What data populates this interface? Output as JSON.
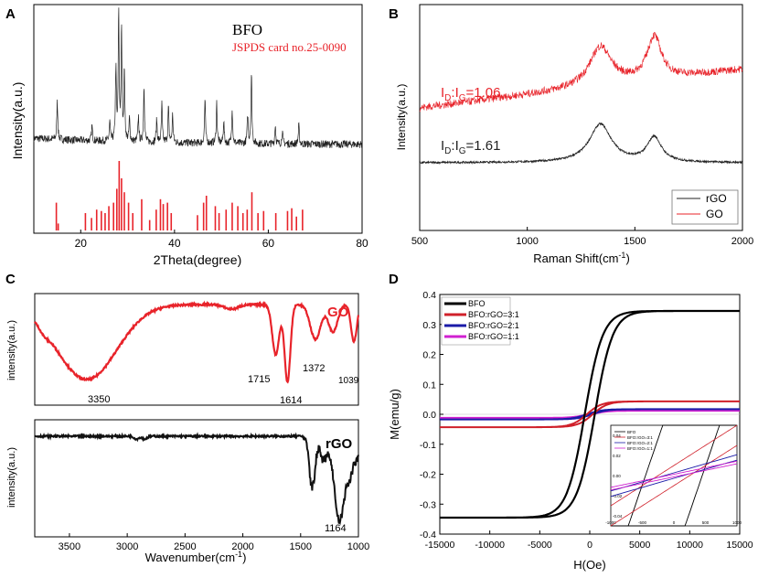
{
  "chart_data": [
    {
      "panel": "A",
      "type": "line",
      "xlabel": "2Theta(degree)",
      "ylabel": "Intensity(a.u.)",
      "xlim": [
        10,
        80
      ],
      "xticks": [
        "20",
        "40",
        "60",
        "80"
      ],
      "legend": [
        "BFO",
        "JSPDS card no.25-0090"
      ],
      "peaks": [
        {
          "x": 15.0,
          "h": 0.3
        },
        {
          "x": 22.4,
          "h": 0.12
        },
        {
          "x": 26.2,
          "h": 0.15
        },
        {
          "x": 27.5,
          "h": 0.55
        },
        {
          "x": 28.1,
          "h": 1.0
        },
        {
          "x": 28.7,
          "h": 0.85
        },
        {
          "x": 29.3,
          "h": 0.55
        },
        {
          "x": 30.4,
          "h": 0.18
        },
        {
          "x": 32.3,
          "h": 0.2
        },
        {
          "x": 33.5,
          "h": 0.45
        },
        {
          "x": 36.2,
          "h": 0.18
        },
        {
          "x": 37.3,
          "h": 0.3
        },
        {
          "x": 38.7,
          "h": 0.28
        },
        {
          "x": 39.6,
          "h": 0.22
        },
        {
          "x": 46.5,
          "h": 0.35
        },
        {
          "x": 49.0,
          "h": 0.32
        },
        {
          "x": 50.5,
          "h": 0.18
        },
        {
          "x": 52.3,
          "h": 0.28
        },
        {
          "x": 55.6,
          "h": 0.22
        },
        {
          "x": 56.4,
          "h": 0.55
        },
        {
          "x": 61.5,
          "h": 0.15
        },
        {
          "x": 63.0,
          "h": 0.1
        },
        {
          "x": 66.5,
          "h": 0.15
        }
      ],
      "ref_lines": [
        {
          "x": 14.8,
          "h": 0.4
        },
        {
          "x": 15.2,
          "h": 0.1
        },
        {
          "x": 21.0,
          "h": 0.25
        },
        {
          "x": 22.3,
          "h": 0.18
        },
        {
          "x": 23.4,
          "h": 0.3
        },
        {
          "x": 24.4,
          "h": 0.28
        },
        {
          "x": 25.2,
          "h": 0.25
        },
        {
          "x": 26.0,
          "h": 0.35
        },
        {
          "x": 27.0,
          "h": 0.4
        },
        {
          "x": 27.7,
          "h": 0.6
        },
        {
          "x": 28.2,
          "h": 1.0
        },
        {
          "x": 28.7,
          "h": 0.75
        },
        {
          "x": 29.3,
          "h": 0.55
        },
        {
          "x": 30.2,
          "h": 0.4
        },
        {
          "x": 31.1,
          "h": 0.25
        },
        {
          "x": 33.0,
          "h": 0.45
        },
        {
          "x": 34.7,
          "h": 0.15
        },
        {
          "x": 36.1,
          "h": 0.3
        },
        {
          "x": 37.0,
          "h": 0.45
        },
        {
          "x": 37.6,
          "h": 0.38
        },
        {
          "x": 38.5,
          "h": 0.4
        },
        {
          "x": 39.3,
          "h": 0.25
        },
        {
          "x": 44.9,
          "h": 0.22
        },
        {
          "x": 46.2,
          "h": 0.4
        },
        {
          "x": 46.8,
          "h": 0.5
        },
        {
          "x": 48.7,
          "h": 0.35
        },
        {
          "x": 49.5,
          "h": 0.25
        },
        {
          "x": 51.0,
          "h": 0.3
        },
        {
          "x": 52.3,
          "h": 0.4
        },
        {
          "x": 53.5,
          "h": 0.35
        },
        {
          "x": 54.6,
          "h": 0.25
        },
        {
          "x": 55.5,
          "h": 0.3
        },
        {
          "x": 56.5,
          "h": 0.55
        },
        {
          "x": 57.8,
          "h": 0.25
        },
        {
          "x": 59.0,
          "h": 0.28
        },
        {
          "x": 61.6,
          "h": 0.25
        },
        {
          "x": 64.1,
          "h": 0.28
        },
        {
          "x": 65.0,
          "h": 0.32
        },
        {
          "x": 66.0,
          "h": 0.2
        },
        {
          "x": 67.3,
          "h": 0.3
        }
      ]
    },
    {
      "panel": "B",
      "type": "line",
      "xlabel": "Raman Shift(cm-1)",
      "ylabel": "Intensity(a.u.)",
      "xlim": [
        500,
        2000
      ],
      "xticks": [
        "500",
        "1000",
        "1500",
        "2000"
      ],
      "series": [
        {
          "name": "rGO",
          "color": "#222222",
          "baseline": 0.0,
          "slope": 0.0,
          "d_band": 1340,
          "g_band": 1590,
          "d_height": 0.7,
          "g_height": 0.45
        },
        {
          "name": "GO",
          "color": "#e8232a",
          "baseline": 0.45,
          "slope": 0.7,
          "d_band": 1340,
          "g_band": 1590,
          "d_height": 0.72,
          "g_height": 0.78
        }
      ],
      "ratio_labels": [
        {
          "sub_pre": "I",
          "sub_a": "D",
          "mid": ":I",
          "sub_b": "G",
          "value": "=1.06",
          "color": "#e8232a"
        },
        {
          "sub_pre": "I",
          "sub_a": "D",
          "mid": ":I",
          "sub_b": "G",
          "value": "=1.61",
          "color": "#222222"
        }
      ],
      "legend": [
        "rGO",
        "GO"
      ]
    },
    {
      "panel": "C",
      "type": "line",
      "xlabel": "Wavenumber(cm-1)",
      "ylabel": "intensity(a.u.)",
      "xlim": [
        3800,
        1000
      ],
      "xticks": [
        "3500",
        "3000",
        "2500",
        "2000",
        "1500",
        "1000"
      ],
      "series": [
        {
          "name": "GO",
          "color": "#e8232a",
          "peak_labels": [
            "3350",
            "1715",
            "1614",
            "1372",
            "1039"
          ]
        },
        {
          "name": "rGO",
          "color": "#111111",
          "peak_labels": [
            "1164"
          ]
        }
      ]
    },
    {
      "panel": "D",
      "type": "line",
      "xlabel": "H(Oe)",
      "ylabel": "M(emu/g)",
      "xlim": [
        -15000,
        15000
      ],
      "ylim": [
        -0.4,
        0.4
      ],
      "xticks": [
        "-15000",
        "-10000",
        "-5000",
        "0",
        "5000",
        "10000",
        "15000"
      ],
      "yticks": [
        "-0.4",
        "-0.3",
        "-0.2",
        "-0.1",
        "0.0",
        "0.1",
        "0.2",
        "0.3",
        "0.4"
      ],
      "series": [
        {
          "name": "BFO",
          "color": "#000000",
          "ms": 0.345,
          "hc": 500,
          "h0": 1800
        },
        {
          "name": "BFO:rGO=3:1",
          "color": "#d0202a",
          "ms": 0.043,
          "hc": 300,
          "h0": 1500
        },
        {
          "name": "BFO:rGO=2:1",
          "color": "#1a1aa8",
          "ms": 0.017,
          "hc": 250,
          "h0": 1500
        },
        {
          "name": "BFO:rGO=1:1",
          "color": "#d020d0",
          "ms": 0.012,
          "hc": 200,
          "h0": 1500
        }
      ],
      "inset": {
        "legend": [
          "BFO",
          "BFO:rGO=3:1",
          "BFO:rGO=2:1",
          "BFO:rGO=1:1"
        ],
        "xticks": [
          "-1000",
          "-500",
          "0",
          "500",
          "1000"
        ],
        "yticks": [
          "0.04",
          "0.02",
          "0.00",
          "-0.02",
          "-0.04"
        ]
      }
    }
  ],
  "panels": {
    "a": {
      "label": "A",
      "title": "BFO",
      "subtitle": "JSPDS card no.25-0090",
      "xlabel": "2Theta(degree)",
      "ylabel": "Intensity(a.u.)"
    },
    "b": {
      "label": "B",
      "xlabel": "Raman Shift(cm",
      "xlabel_sup": "-1",
      "xlabel_end": ")",
      "ylabel": "Intensity(a.u.)"
    },
    "c": {
      "label": "C",
      "xlabel": "Wavenumber(cm",
      "xlabel_sup": "-1",
      "xlabel_end": ")",
      "ylabel_top": "intensity(a.u.)",
      "ylabel_bottom": "intensity(a.u.)",
      "go_label": "GO",
      "rgo_label": "rGO"
    },
    "d": {
      "label": "D",
      "xlabel": "H(Oe)",
      "ylabel": "M(emu/g)"
    }
  }
}
